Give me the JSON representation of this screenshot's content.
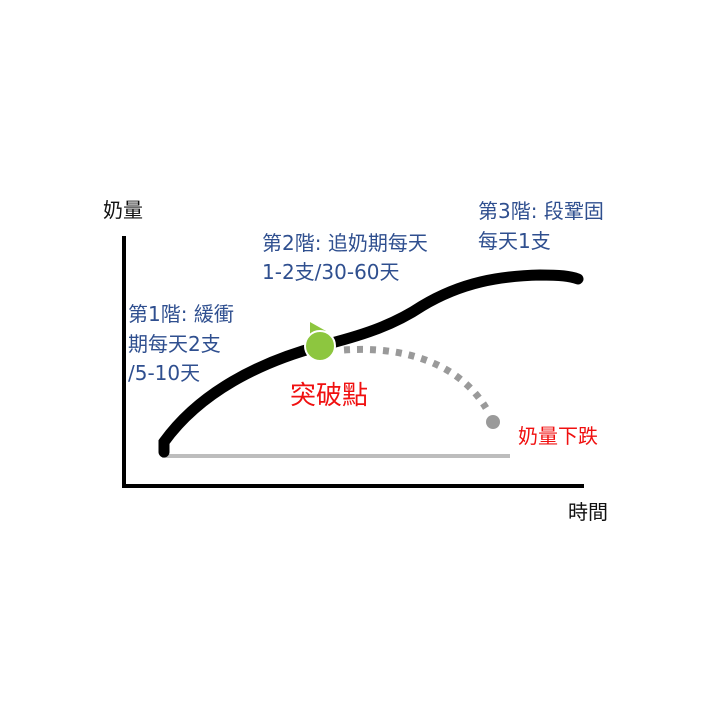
{
  "axes": {
    "y_label": "奶量",
    "x_label": "時間"
  },
  "stages": [
    {
      "lines": [
        "第1階: 緩衝",
        "期每天2支",
        "/5-10天"
      ]
    },
    {
      "lines": [
        "第2階: 追奶期每天",
        "1-2支/30-60天"
      ]
    },
    {
      "lines": [
        "第3階: 段鞏固",
        "每天1支"
      ]
    }
  ],
  "breakthrough_label": "突破點",
  "decline_label": "奶量下跌",
  "colors": {
    "text_blue": "#2f4f8f",
    "red": "#f01010",
    "marker_green": "#8dc63f",
    "curve": "#000000",
    "dashed": "#9a9a9a",
    "baseline": "#bdbdbd"
  }
}
